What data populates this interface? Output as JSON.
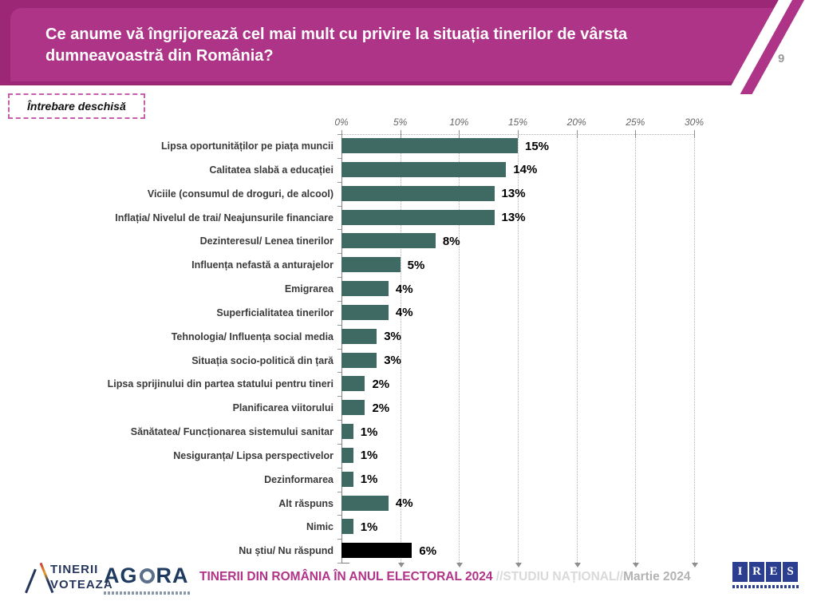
{
  "header": {
    "title": "Ce anume vă îngrijorează cel mai mult cu privire la situația tinerilor de vârsta dumneavoastră din România?",
    "page_number": "9",
    "band_color": "#ae3488",
    "band_back_color": "#9c2777"
  },
  "question_type_label": "Întrebare deschisă",
  "chart_data": {
    "type": "bar",
    "orientation": "horizontal",
    "title": "",
    "xlabel": "",
    "ylabel": "",
    "xlim": [
      0,
      30
    ],
    "x_tick_labels": [
      "0%",
      "5%",
      "10%",
      "15%",
      "20%",
      "25%",
      "30%"
    ],
    "grid": "dotted-vertical",
    "categories": [
      "Lipsa oportunităților pe piața muncii",
      "Calitatea slabă a educației",
      "Viciile (consumul de droguri, de alcool)",
      "Inflația/ Nivelul de trai/ Neajunsurile financiare",
      "Dezinteresul/ Lenea tinerilor",
      "Influența nefastă a anturajelor",
      "Emigrarea",
      "Superficialitatea tinerilor",
      "Tehnologia/ Influența social media",
      "Situația socio-politică din țară",
      "Lipsa sprijinului din partea statului pentru tineri",
      "Planificarea viitorului",
      "Sănătatea/ Funcționarea sistemului sanitar",
      "Nesiguranța/ Lipsa perspectivelor",
      "Dezinformarea",
      "Alt răspuns",
      "Nimic",
      "Nu știu/ Nu răspund"
    ],
    "values": [
      15,
      14,
      13,
      13,
      8,
      5,
      4,
      4,
      3,
      3,
      2,
      2,
      1,
      1,
      1,
      4,
      1,
      6
    ],
    "value_labels": [
      "15%",
      "14%",
      "13%",
      "13%",
      "8%",
      "5%",
      "4%",
      "4%",
      "3%",
      "3%",
      "2%",
      "2%",
      "1%",
      "1%",
      "1%",
      "4%",
      "1%",
      "6%"
    ],
    "bar_color": "#3F6A64",
    "highlight_index": 17,
    "highlight_bar_color": "#000000"
  },
  "footer": {
    "logo_tinerii_voteaza": {
      "line1": "TINERII",
      "line2": "VOTEAZĂ"
    },
    "logo_agora": {
      "part1": "AG",
      "part2": "RA"
    },
    "title_magenta": "TINERII DIN ROMÂNIA ÎN ANUL ELECTORAL 2024",
    "title_light": " //STUDIU NAȚIONAL//",
    "title_mid": "Martie 2024",
    "logo_ires": [
      "I",
      "R",
      "E",
      "S"
    ]
  }
}
